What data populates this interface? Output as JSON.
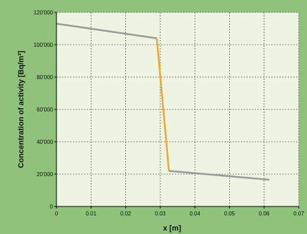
{
  "colors": {
    "background": "#8fc27a",
    "plot_area": "#eef4e2",
    "grid": "#555555",
    "series_outer": "#9a9a9a",
    "series_transition": "#f0a830",
    "axis": "#000000"
  },
  "chart_data": {
    "type": "line",
    "title": "",
    "xlabel": "x [m]",
    "ylabel": "Concentration of activity  [Bq/m³]",
    "xlim": [
      0,
      0.07
    ],
    "ylim": [
      0,
      120000
    ],
    "x_ticks": [
      0,
      0.01,
      0.02,
      0.03,
      0.04,
      0.05,
      0.06,
      0.07
    ],
    "x_tick_labels": [
      "0",
      "0.01",
      "0.02",
      "0.03",
      "0.04",
      "0.05",
      "0.06",
      "0.07"
    ],
    "y_ticks": [
      0,
      20000,
      40000,
      60000,
      80000,
      100000,
      120000
    ],
    "y_tick_labels": [
      "0",
      "20'000",
      "40'000",
      "60'000",
      "80'000",
      "100'000",
      "120'000"
    ],
    "grid": true,
    "series": [
      {
        "color": "#9a9a9a",
        "x": [
          0,
          0.029
        ],
        "y": [
          113000,
          104000
        ]
      },
      {
        "color": "#f0a830",
        "x": [
          0.029,
          0.0325
        ],
        "y": [
          104000,
          22000
        ]
      },
      {
        "color": "#9a9a9a",
        "x": [
          0.0325,
          0.0615
        ],
        "y": [
          22000,
          16500
        ]
      }
    ]
  }
}
